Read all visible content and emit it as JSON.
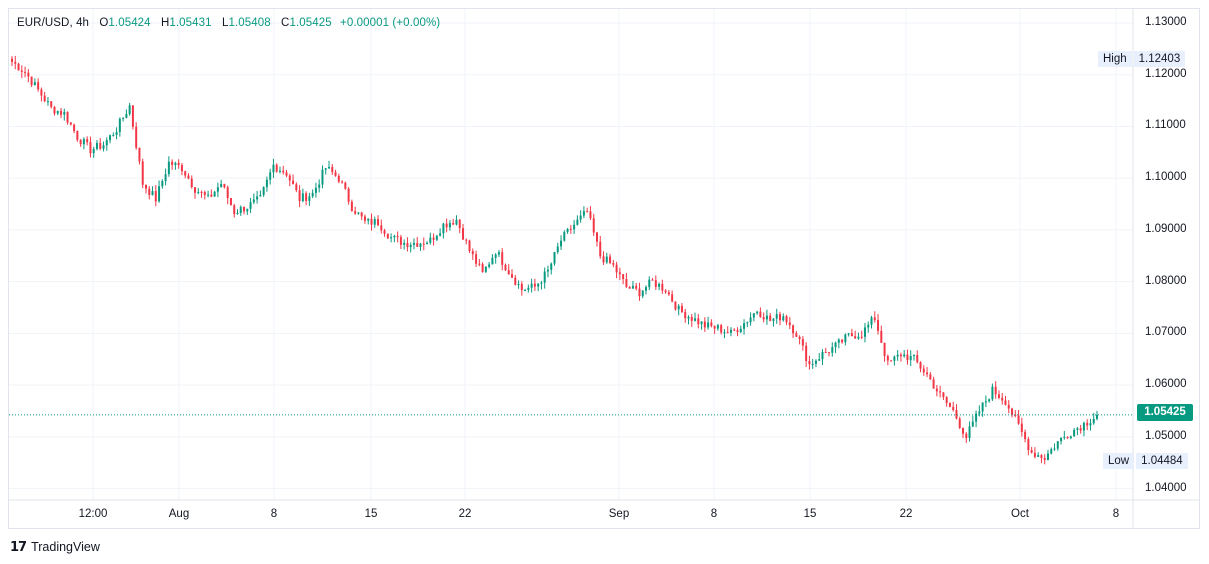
{
  "header": {
    "symbol": "EUR/USD",
    "interval": "4h",
    "ohlc": {
      "open_label": "O",
      "open": "1.05424",
      "high_label": "H",
      "high": "1.05431",
      "low_label": "L",
      "low": "1.05408",
      "close_label": "C",
      "close": "1.05425",
      "change": "+0.00001 (+0.00%)"
    }
  },
  "badges": {
    "high_label": "High",
    "high_value": "1.12403",
    "low_label": "Low",
    "low_value": "1.04484",
    "last_price": "1.05425"
  },
  "colors": {
    "up": "#089981",
    "down": "#f23645",
    "grid": "#f0f3fa",
    "badge_bg": "#e8f0fe",
    "price_line": "#089981"
  },
  "brand": {
    "name": "TradingView",
    "logo_icon": "tradingview-logo-icon"
  },
  "chart_data": {
    "type": "candlestick",
    "x_tick_labels": [
      "12:00",
      "Aug",
      "8",
      "15",
      "22",
      "Sep",
      "8",
      "15",
      "22",
      "Oct",
      "8"
    ],
    "y_tick_labels": [
      "1.13000",
      "1.12000",
      "1.11000",
      "1.10000",
      "1.09000",
      "1.08000",
      "1.07000",
      "1.06000",
      "1.05000",
      "1.04000"
    ],
    "ylim": [
      1.0378,
      1.1327
    ],
    "last_price": 1.05425,
    "last_price_line": "dotted",
    "grid": true,
    "close_path": [
      1.1225,
      1.1205,
      1.117,
      1.1135,
      1.1125,
      1.108,
      1.1055,
      1.1065,
      1.1095,
      1.114,
      1.099,
      1.096,
      1.103,
      1.102,
      1.098,
      1.096,
      1.099,
      1.0935,
      1.0945,
      1.096,
      1.1025,
      1.101,
      1.096,
      1.097,
      1.102,
      1.1,
      1.0945,
      1.0915,
      1.0915,
      1.0885,
      1.0875,
      1.0875,
      1.088,
      1.091,
      1.092,
      1.086,
      1.0815,
      1.086,
      1.082,
      1.0785,
      1.079,
      1.082,
      1.088,
      1.091,
      1.0935,
      1.085,
      1.083,
      1.079,
      1.078,
      1.08,
      1.0785,
      1.0745,
      1.073,
      1.0715,
      1.071,
      1.07,
      1.072,
      1.0745,
      1.0725,
      1.0735,
      1.07,
      1.064,
      1.066,
      1.0675,
      1.0695,
      1.07,
      1.073,
      1.064,
      1.066,
      1.065,
      1.062,
      1.058,
      1.055,
      1.05,
      1.055,
      1.059,
      1.057,
      1.052,
      1.047,
      1.046,
      1.049,
      1.051,
      1.0525,
      1.05425
    ]
  }
}
